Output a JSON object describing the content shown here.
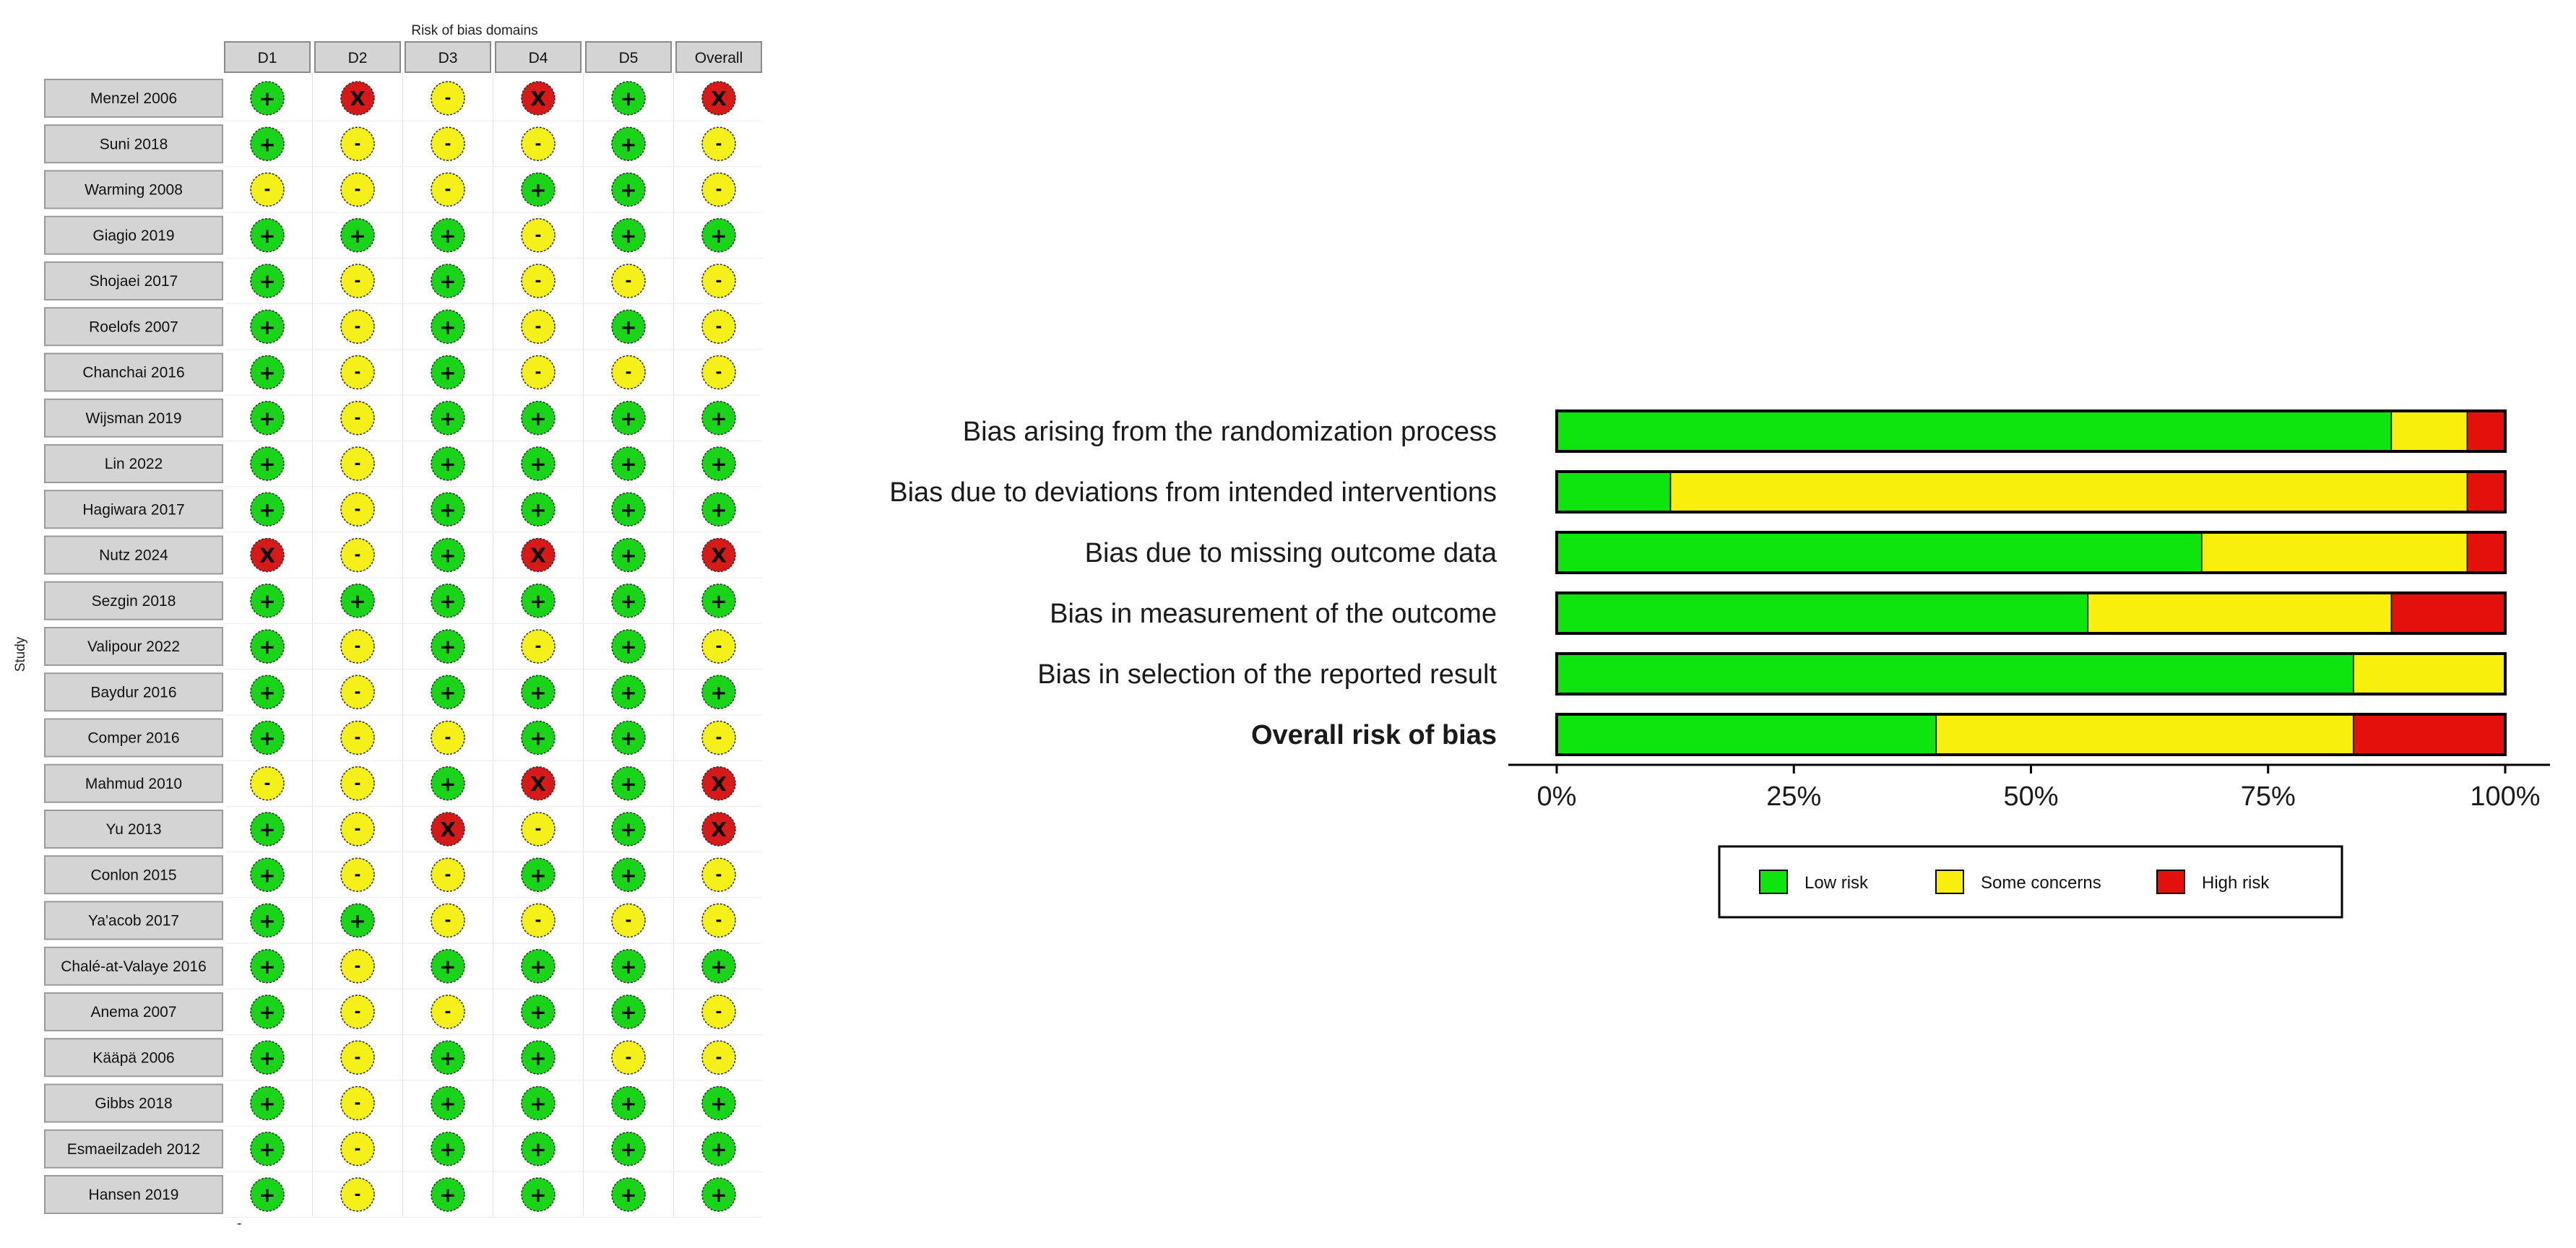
{
  "traffic_light": {
    "caption": "Risk of bias domains",
    "y_label": "Study",
    "domains": [
      "D1",
      "D2",
      "D3",
      "D4",
      "D5",
      "Overall"
    ],
    "symbols": {
      "low": "+",
      "some": "-",
      "high": "X"
    },
    "studies": [
      {
        "name": "Menzel 2006",
        "j": [
          "low",
          "high",
          "some",
          "high",
          "low",
          "high"
        ]
      },
      {
        "name": "Suni 2018",
        "j": [
          "low",
          "some",
          "some",
          "some",
          "low",
          "some"
        ]
      },
      {
        "name": "Warming 2008",
        "j": [
          "some",
          "some",
          "some",
          "low",
          "low",
          "some"
        ]
      },
      {
        "name": "Giagio 2019",
        "j": [
          "low",
          "low",
          "low",
          "some",
          "low",
          "low"
        ]
      },
      {
        "name": "Shojaei 2017",
        "j": [
          "low",
          "some",
          "low",
          "some",
          "some",
          "some"
        ]
      },
      {
        "name": "Roelofs 2007",
        "j": [
          "low",
          "some",
          "low",
          "some",
          "low",
          "some"
        ]
      },
      {
        "name": "Chanchai 2016",
        "j": [
          "low",
          "some",
          "low",
          "some",
          "some",
          "some"
        ]
      },
      {
        "name": "Wijsman 2019",
        "j": [
          "low",
          "some",
          "low",
          "low",
          "low",
          "low"
        ]
      },
      {
        "name": "Lin 2022",
        "j": [
          "low",
          "some",
          "low",
          "low",
          "low",
          "low"
        ]
      },
      {
        "name": "Hagiwara 2017",
        "j": [
          "low",
          "some",
          "low",
          "low",
          "low",
          "low"
        ]
      },
      {
        "name": "Nutz 2024",
        "j": [
          "high",
          "some",
          "low",
          "high",
          "low",
          "high"
        ]
      },
      {
        "name": "Sezgin 2018",
        "j": [
          "low",
          "low",
          "low",
          "low",
          "low",
          "low"
        ]
      },
      {
        "name": "Valipour 2022",
        "j": [
          "low",
          "some",
          "low",
          "some",
          "low",
          "some"
        ]
      },
      {
        "name": "Baydur 2016",
        "j": [
          "low",
          "some",
          "low",
          "low",
          "low",
          "low"
        ]
      },
      {
        "name": "Comper 2016",
        "j": [
          "low",
          "some",
          "some",
          "low",
          "low",
          "some"
        ]
      },
      {
        "name": "Mahmud 2010",
        "j": [
          "some",
          "some",
          "low",
          "high",
          "low",
          "high"
        ]
      },
      {
        "name": "Yu 2013",
        "j": [
          "low",
          "some",
          "high",
          "some",
          "low",
          "high"
        ]
      },
      {
        "name": "Conlon 2015",
        "j": [
          "low",
          "some",
          "some",
          "low",
          "low",
          "some"
        ]
      },
      {
        "name": "Ya'acob 2017",
        "j": [
          "low",
          "low",
          "some",
          "some",
          "some",
          "some"
        ]
      },
      {
        "name": "Chalé-at-Valaye 2016",
        "j": [
          "low",
          "some",
          "low",
          "low",
          "low",
          "low"
        ]
      },
      {
        "name": "Anema 2007",
        "j": [
          "low",
          "some",
          "some",
          "low",
          "low",
          "some"
        ]
      },
      {
        "name": "Kääpä 2006",
        "j": [
          "low",
          "some",
          "low",
          "low",
          "some",
          "some"
        ]
      },
      {
        "name": "Gibbs 2018",
        "j": [
          "low",
          "some",
          "low",
          "low",
          "low",
          "low"
        ]
      },
      {
        "name": "Esmaeilzadeh 2012",
        "j": [
          "low",
          "some",
          "low",
          "low",
          "low",
          "low"
        ]
      },
      {
        "name": "Hansen 2019",
        "j": [
          "low",
          "some",
          "low",
          "low",
          "low",
          "low"
        ]
      }
    ]
  },
  "chart_data": {
    "type": "bar",
    "orientation": "horizontal",
    "stacked": true,
    "categories": [
      "Bias arising from the randomization process",
      "Bias due to deviations from intended interventions",
      "Bias due to missing outcome data",
      "Bias in measurement of the outcome",
      "Bias in selection of the reported result",
      "Overall risk of bias"
    ],
    "bold_categories": [
      "Overall risk of bias"
    ],
    "series": [
      {
        "name": "Low risk",
        "color": "#0ee40e",
        "values": [
          88,
          12,
          68,
          56,
          84,
          40
        ]
      },
      {
        "name": "Some concerns",
        "color": "#f8f00c",
        "values": [
          8,
          84,
          28,
          32,
          16,
          44
        ]
      },
      {
        "name": "High risk",
        "color": "#e4100c",
        "values": [
          4,
          4,
          4,
          12,
          0,
          16
        ]
      }
    ],
    "x_ticks": [
      "0%",
      "25%",
      "50%",
      "75%",
      "100%"
    ],
    "xlim": [
      0,
      100
    ],
    "legend_position": "bottom"
  },
  "colors": {
    "low": "#19d419",
    "some": "#f5f01a",
    "high": "#d61a1a",
    "label_bg": "#d4d4d4"
  }
}
